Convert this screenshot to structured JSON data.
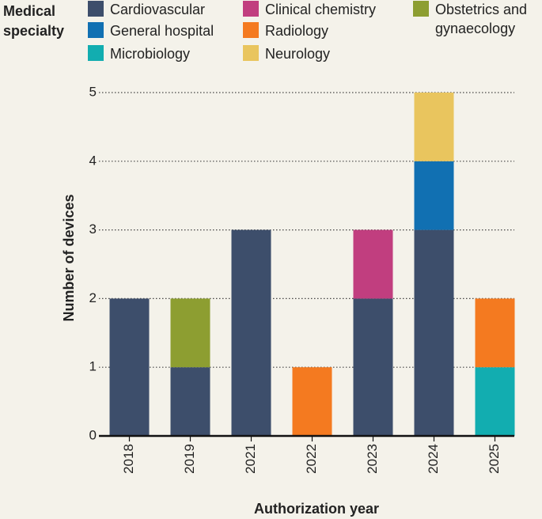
{
  "chart_data": {
    "type": "stacked_bar",
    "legend_title": "Medical specialty",
    "xlabel": "Authorization year",
    "ylabel": "Number of devices",
    "categories": [
      "2018",
      "2019",
      "2021",
      "2022",
      "2023",
      "2024",
      "2025"
    ],
    "series": [
      {
        "name": "Cardiovascular",
        "color": "#3d4e6b",
        "values": [
          2,
          1,
          3,
          0,
          2,
          3,
          0
        ]
      },
      {
        "name": "General hospital",
        "color": "#1170b2",
        "values": [
          0,
          0,
          0,
          0,
          0,
          1,
          0
        ]
      },
      {
        "name": "Microbiology",
        "color": "#12adb0",
        "values": [
          0,
          0,
          0,
          0,
          0,
          0,
          1
        ]
      },
      {
        "name": "Clinical chemistry",
        "color": "#c13e7f",
        "values": [
          0,
          0,
          0,
          0,
          1,
          0,
          0
        ]
      },
      {
        "name": "Radiology",
        "color": "#f47a20",
        "values": [
          0,
          0,
          0,
          1,
          0,
          0,
          1
        ]
      },
      {
        "name": "Neurology",
        "color": "#e9c55e",
        "values": [
          0,
          0,
          0,
          0,
          0,
          1,
          0
        ]
      },
      {
        "name": "Obstetrics and gynaecology",
        "color": "#8d9e31",
        "values": [
          0,
          1,
          0,
          0,
          0,
          0,
          0
        ]
      }
    ],
    "ylim": [
      0,
      5
    ],
    "yticks": [
      0,
      1,
      2,
      3,
      4,
      5
    ],
    "grid": true
  }
}
